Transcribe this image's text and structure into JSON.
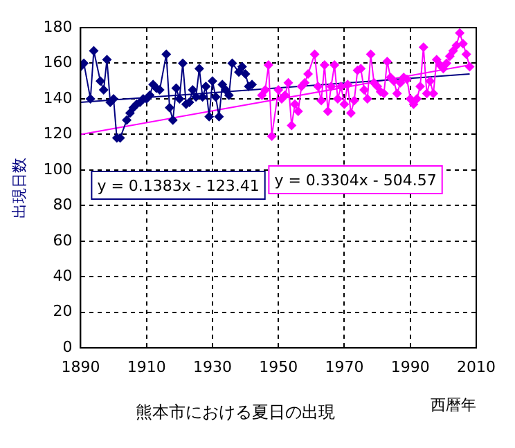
{
  "chart_data": {
    "type": "line",
    "title": "熊本市における夏日の出現",
    "xlabel": "西暦年",
    "ylabel": "出現日数",
    "xlim": [
      1890,
      2010
    ],
    "xticks": [
      1890,
      1910,
      1930,
      1950,
      1970,
      1990,
      2010
    ],
    "ylim": [
      0,
      180
    ],
    "yticks": [
      0,
      20,
      40,
      60,
      80,
      100,
      120,
      140,
      160,
      180
    ],
    "grid": true,
    "legend": false,
    "marker": "diamond",
    "line_style": "solid",
    "series": [
      {
        "color": "#000080",
        "x": [
          1890,
          1891,
          1893,
          1894,
          1896,
          1897,
          1898,
          1899,
          1900,
          1901,
          1902,
          1904,
          1905,
          1906,
          1907,
          1908,
          1909,
          1910,
          1911,
          1912,
          1913,
          1914,
          1916,
          1917,
          1918,
          1919,
          1920,
          1921,
          1922,
          1923,
          1924,
          1925,
          1926,
          1927,
          1928,
          1929,
          1930,
          1931,
          1932,
          1933,
          1934,
          1935,
          1936,
          1938,
          1939,
          1940,
          1941,
          1942
        ],
        "values": [
          158,
          160,
          140,
          167,
          150,
          145,
          162,
          138,
          140,
          118,
          118,
          128,
          132,
          135,
          137,
          138,
          140,
          140,
          142,
          148,
          146,
          145,
          165,
          135,
          128,
          146,
          140,
          160,
          137,
          138,
          145,
          141,
          157,
          141,
          147,
          130,
          150,
          141,
          130,
          148,
          145,
          142,
          160,
          155,
          158,
          154,
          147,
          148
        ]
      },
      {
        "color": "#ff00ff",
        "x": [
          1945,
          1946,
          1947,
          1948,
          1950,
          1951,
          1952,
          1953,
          1954,
          1955,
          1956,
          1957,
          1958,
          1959,
          1961,
          1962,
          1963,
          1964,
          1965,
          1966,
          1967,
          1968,
          1969,
          1970,
          1971,
          1972,
          1973,
          1974,
          1975,
          1976,
          1977,
          1978,
          1979,
          1980,
          1981,
          1982,
          1983,
          1984,
          1985,
          1986,
          1987,
          1988,
          1989,
          1990,
          1991,
          1992,
          1993,
          1994,
          1995,
          1996,
          1997,
          1998,
          1999,
          2000,
          2001,
          2002,
          2003,
          2004,
          2005,
          2006,
          2007,
          2008
        ],
        "values": [
          142,
          145,
          159,
          119,
          145,
          140,
          142,
          149,
          125,
          137,
          133,
          147,
          149,
          154,
          165,
          147,
          139,
          159,
          133,
          147,
          159,
          140,
          147,
          137,
          148,
          132,
          139,
          156,
          157,
          145,
          140,
          165,
          149,
          147,
          144,
          143,
          161,
          152,
          150,
          143,
          149,
          152,
          151,
          140,
          137,
          140,
          147,
          169,
          143,
          150,
          143,
          162,
          159,
          157,
          160,
          164,
          167,
          170,
          177,
          171,
          165,
          158
        ]
      },
      {
        "type": "line",
        "marker": "none",
        "color": "#000080",
        "x": [
          1890,
          2008
        ],
        "values": [
          138,
          154
        ]
      },
      {
        "type": "line",
        "marker": "none",
        "color": "#ff00ff",
        "x": [
          1890,
          2008
        ],
        "values": [
          120,
          159
        ]
      }
    ],
    "annotations": [
      "y = 0.1383x - 123.41",
      "y = 0.3304x - 504.57"
    ]
  }
}
